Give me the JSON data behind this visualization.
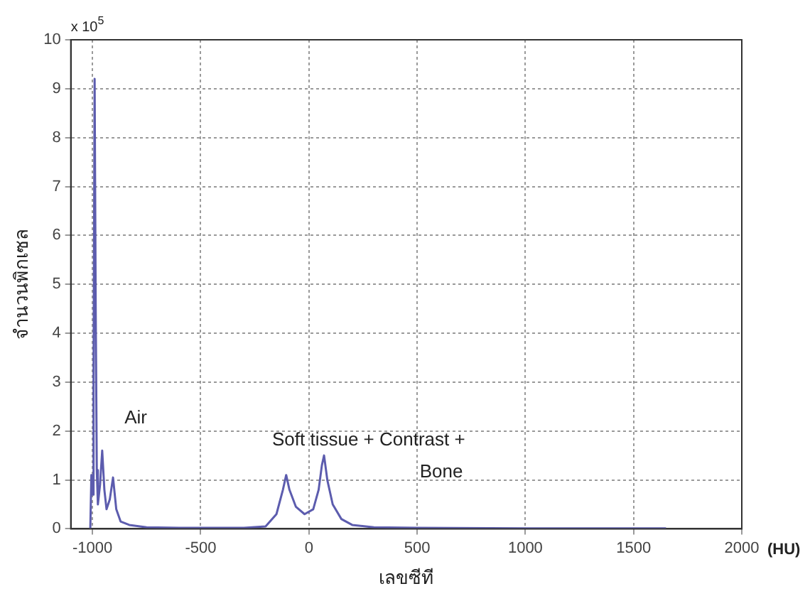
{
  "chart_data": {
    "type": "line",
    "xlabel": "เลขซีที",
    "ylabel": "จำนวนพิกเซล",
    "x": [
      -1010,
      -1005,
      -1000,
      -995,
      -990,
      -985,
      -980,
      -975,
      -965,
      -955,
      -945,
      -935,
      -920,
      -905,
      -890,
      -870,
      -830,
      -750,
      -600,
      -300,
      -200,
      -150,
      -120,
      -105,
      -90,
      -60,
      -20,
      20,
      45,
      60,
      70,
      85,
      110,
      150,
      200,
      300,
      500,
      1000,
      1500,
      1650
    ],
    "series": [
      {
        "color": "#5c5cae",
        "values": [
          0,
          1.1,
          0.7,
          3.0,
          9.2,
          4.5,
          1.2,
          0.5,
          0.9,
          1.6,
          0.8,
          0.4,
          0.6,
          1.05,
          0.4,
          0.15,
          0.08,
          0.03,
          0.02,
          0.02,
          0.05,
          0.3,
          0.8,
          1.1,
          0.8,
          0.45,
          0.3,
          0.4,
          0.8,
          1.3,
          1.5,
          1.0,
          0.5,
          0.2,
          0.08,
          0.03,
          0.02,
          0.01,
          0.01,
          0.01
        ]
      }
    ],
    "xlim": [
      -1100,
      2000
    ],
    "xticks": [
      -1000,
      -500,
      0,
      500,
      1000,
      1500,
      2000
    ],
    "ylim": [
      0,
      10
    ],
    "yticks": [
      0,
      1,
      2,
      3,
      4,
      5,
      6,
      7,
      8,
      9,
      10
    ],
    "grid": true,
    "legend": false,
    "marker": "none",
    "line_style": "solid",
    "annotations": [
      "x 10$^{5}$",
      "(HU)",
      "Air",
      "Soft tissue + Contrast +",
      "Bone"
    ]
  }
}
